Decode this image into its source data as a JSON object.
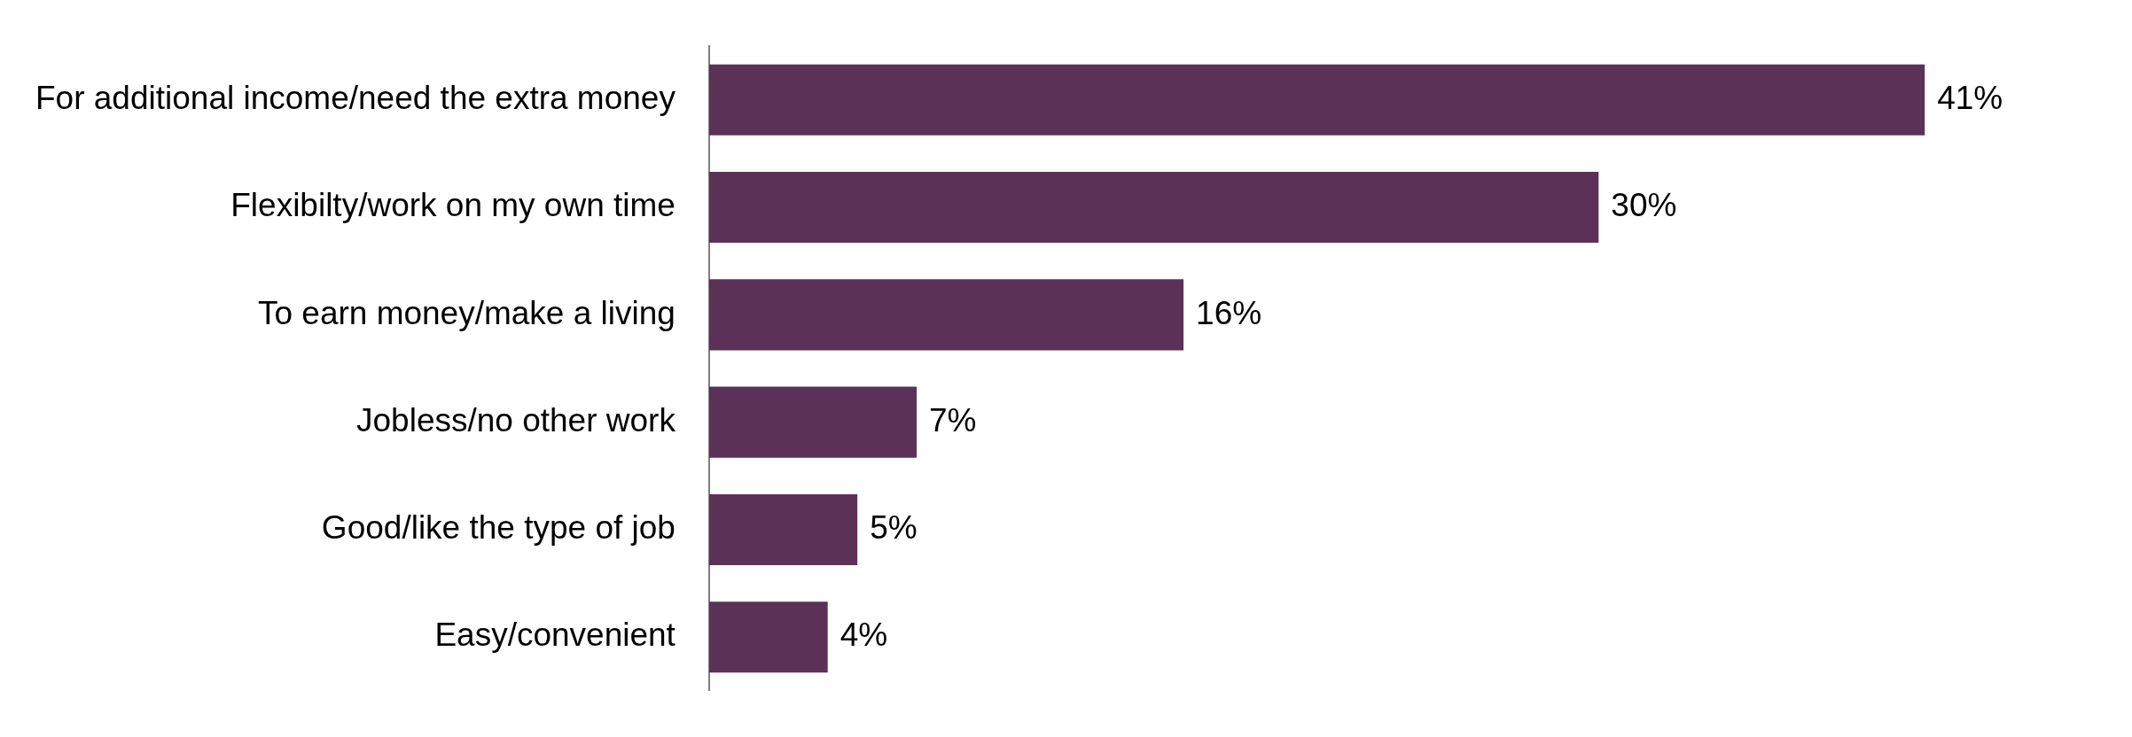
{
  "chart_data": {
    "type": "bar",
    "orientation": "horizontal",
    "categories": [
      "For additional income/need the extra money",
      "Flexibilty/work on my own time",
      "To earn money/make a living",
      "Jobless/no other work",
      "Good/like the type of job",
      "Easy/convenient"
    ],
    "values": [
      41,
      30,
      16,
      7,
      5,
      4
    ],
    "value_labels": [
      "41%",
      "30%",
      "16%",
      "7%",
      "5%",
      "4%"
    ],
    "color": "#5c3157",
    "grid": false,
    "legend": false,
    "tick_labels": "y"
  }
}
